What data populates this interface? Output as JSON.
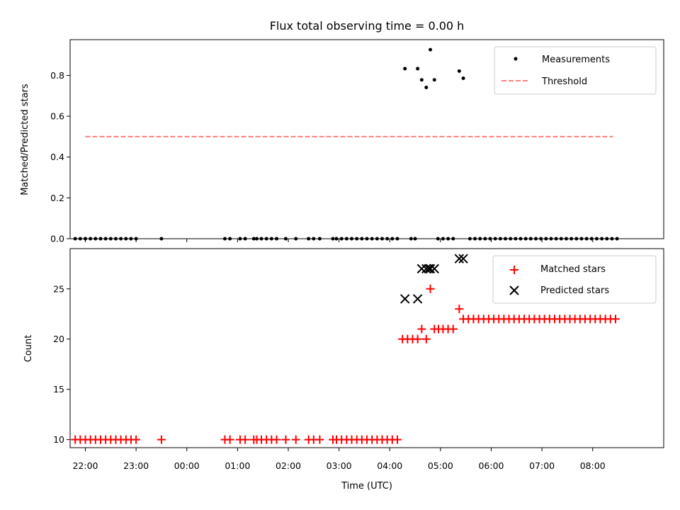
{
  "chart_data": [
    {
      "type": "scatter",
      "title": "Flux total observing time = 0.00 h",
      "ylabel": "Matched/Predicted stars",
      "xlim": [
        -2.3,
        9.4
      ],
      "ylim": [
        0,
        0.975
      ],
      "yticks": [
        "0.0",
        "0.2",
        "0.4",
        "0.6",
        "0.8"
      ],
      "x_unit": "hours relative to 00:00 UTC",
      "legend": {
        "position": "top-right",
        "entries": [
          "Measurements",
          "Threshold"
        ]
      },
      "threshold": {
        "name": "Threshold",
        "value": 0.5,
        "x": [
          -2.0,
          8.4
        ],
        "color": "#ff7f7f",
        "style": "dashed"
      },
      "series": [
        {
          "name": "Measurements",
          "color": "#000000",
          "marker": "dot",
          "points": [
            [
              -2.2,
              0
            ],
            [
              -2.1,
              0
            ],
            [
              -2.0,
              0
            ],
            [
              -1.9,
              0
            ],
            [
              -1.8,
              0
            ],
            [
              -1.7,
              0
            ],
            [
              -1.6,
              0
            ],
            [
              -1.5,
              0
            ],
            [
              -1.4,
              0
            ],
            [
              -1.3,
              0
            ],
            [
              -1.2,
              0
            ],
            [
              -1.1,
              0
            ],
            [
              -1.0,
              0
            ],
            [
              -0.5,
              0
            ],
            [
              0.75,
              0
            ],
            [
              0.85,
              0
            ],
            [
              1.05,
              0
            ],
            [
              1.15,
              0
            ],
            [
              1.32,
              0
            ],
            [
              1.38,
              0
            ],
            [
              1.47,
              0
            ],
            [
              1.57,
              0
            ],
            [
              1.67,
              0
            ],
            [
              1.77,
              0
            ],
            [
              1.95,
              0
            ],
            [
              2.15,
              0
            ],
            [
              2.4,
              0
            ],
            [
              2.5,
              0
            ],
            [
              2.62,
              0
            ],
            [
              2.88,
              0
            ],
            [
              2.95,
              0
            ],
            [
              3.05,
              0
            ],
            [
              3.15,
              0
            ],
            [
              3.25,
              0
            ],
            [
              3.35,
              0
            ],
            [
              3.45,
              0
            ],
            [
              3.55,
              0
            ],
            [
              3.65,
              0
            ],
            [
              3.75,
              0
            ],
            [
              3.85,
              0
            ],
            [
              3.95,
              0
            ],
            [
              4.05,
              0
            ],
            [
              4.15,
              0
            ],
            [
              4.42,
              0
            ],
            [
              4.5,
              0
            ],
            [
              4.95,
              0
            ],
            [
              5.05,
              0
            ],
            [
              5.15,
              0
            ],
            [
              5.25,
              0
            ],
            [
              5.58,
              0
            ],
            [
              5.68,
              0
            ],
            [
              5.78,
              0
            ],
            [
              5.88,
              0
            ],
            [
              5.98,
              0
            ],
            [
              6.08,
              0
            ],
            [
              6.18,
              0
            ],
            [
              6.28,
              0
            ],
            [
              6.38,
              0
            ],
            [
              6.48,
              0
            ],
            [
              6.58,
              0
            ],
            [
              6.68,
              0
            ],
            [
              6.78,
              0
            ],
            [
              6.88,
              0
            ],
            [
              6.98,
              0
            ],
            [
              7.08,
              0
            ],
            [
              7.18,
              0
            ],
            [
              7.28,
              0
            ],
            [
              7.38,
              0
            ],
            [
              7.48,
              0
            ],
            [
              7.58,
              0
            ],
            [
              7.68,
              0
            ],
            [
              7.78,
              0
            ],
            [
              7.88,
              0
            ],
            [
              7.98,
              0
            ],
            [
              8.08,
              0
            ],
            [
              8.18,
              0
            ],
            [
              8.28,
              0
            ],
            [
              8.38,
              0
            ],
            [
              8.48,
              0
            ],
            [
              4.3,
              0.833
            ],
            [
              4.55,
              0.833
            ],
            [
              4.63,
              0.778
            ],
            [
              4.72,
              0.741
            ],
            [
              4.8,
              0.926
            ],
            [
              4.88,
              0.778
            ],
            [
              5.37,
              0.821
            ],
            [
              5.45,
              0.786
            ]
          ]
        }
      ]
    },
    {
      "type": "scatter",
      "xlabel": "Time (UTC)",
      "ylabel": "Count",
      "xlim": [
        -2.3,
        9.4
      ],
      "ylim": [
        9.2,
        29
      ],
      "yticks": [
        "10",
        "15",
        "20",
        "25"
      ],
      "xtick_labels": [
        "22:00",
        "23:00",
        "00:00",
        "01:00",
        "02:00",
        "03:00",
        "04:00",
        "05:00",
        "06:00",
        "07:00",
        "08:00"
      ],
      "xtick_hours": [
        -2,
        -1,
        0,
        1,
        2,
        3,
        4,
        5,
        6,
        7,
        8
      ],
      "x_unit": "hours relative to 00:00 UTC",
      "legend": {
        "position": "top-right",
        "entries": [
          "Matched stars",
          "Predicted stars"
        ]
      },
      "series": [
        {
          "name": "Matched stars",
          "color": "#ff0000",
          "marker": "plus",
          "points": [
            [
              -2.2,
              10
            ],
            [
              -2.1,
              10
            ],
            [
              -2.0,
              10
            ],
            [
              -1.9,
              10
            ],
            [
              -1.8,
              10
            ],
            [
              -1.7,
              10
            ],
            [
              -1.6,
              10
            ],
            [
              -1.5,
              10
            ],
            [
              -1.4,
              10
            ],
            [
              -1.3,
              10
            ],
            [
              -1.2,
              10
            ],
            [
              -1.1,
              10
            ],
            [
              -1.0,
              10
            ],
            [
              -0.5,
              10
            ],
            [
              0.75,
              10
            ],
            [
              0.85,
              10
            ],
            [
              1.05,
              10
            ],
            [
              1.15,
              10
            ],
            [
              1.32,
              10
            ],
            [
              1.38,
              10
            ],
            [
              1.47,
              10
            ],
            [
              1.57,
              10
            ],
            [
              1.67,
              10
            ],
            [
              1.77,
              10
            ],
            [
              1.95,
              10
            ],
            [
              2.15,
              10
            ],
            [
              2.4,
              10
            ],
            [
              2.5,
              10
            ],
            [
              2.62,
              10
            ],
            [
              2.88,
              10
            ],
            [
              2.95,
              10
            ],
            [
              3.05,
              10
            ],
            [
              3.15,
              10
            ],
            [
              3.25,
              10
            ],
            [
              3.35,
              10
            ],
            [
              3.45,
              10
            ],
            [
              3.55,
              10
            ],
            [
              3.65,
              10
            ],
            [
              3.75,
              10
            ],
            [
              3.85,
              10
            ],
            [
              3.95,
              10
            ],
            [
              4.05,
              10
            ],
            [
              4.15,
              10
            ],
            [
              4.25,
              20
            ],
            [
              4.35,
              20
            ],
            [
              4.45,
              20
            ],
            [
              4.55,
              20
            ],
            [
              4.63,
              21
            ],
            [
              4.72,
              20
            ],
            [
              4.8,
              25
            ],
            [
              4.88,
              21
            ],
            [
              4.96,
              21
            ],
            [
              5.05,
              21
            ],
            [
              5.15,
              21
            ],
            [
              5.25,
              21
            ],
            [
              5.37,
              23
            ],
            [
              5.45,
              22
            ],
            [
              5.55,
              22
            ],
            [
              5.65,
              22
            ],
            [
              5.75,
              22
            ],
            [
              5.85,
              22
            ],
            [
              5.95,
              22
            ],
            [
              6.05,
              22
            ],
            [
              6.15,
              22
            ],
            [
              6.25,
              22
            ],
            [
              6.35,
              22
            ],
            [
              6.45,
              22
            ],
            [
              6.55,
              22
            ],
            [
              6.65,
              22
            ],
            [
              6.75,
              22
            ],
            [
              6.85,
              22
            ],
            [
              6.95,
              22
            ],
            [
              7.05,
              22
            ],
            [
              7.15,
              22
            ],
            [
              7.25,
              22
            ],
            [
              7.35,
              22
            ],
            [
              7.45,
              22
            ],
            [
              7.55,
              22
            ],
            [
              7.65,
              22
            ],
            [
              7.75,
              22
            ],
            [
              7.85,
              22
            ],
            [
              7.95,
              22
            ],
            [
              8.05,
              22
            ],
            [
              8.15,
              22
            ],
            [
              8.25,
              22
            ],
            [
              8.35,
              22
            ],
            [
              8.45,
              22
            ]
          ]
        },
        {
          "name": "Predicted stars",
          "color": "#000000",
          "marker": "x",
          "points": [
            [
              4.3,
              24
            ],
            [
              4.55,
              24
            ],
            [
              4.63,
              27
            ],
            [
              4.72,
              27
            ],
            [
              4.77,
              27
            ],
            [
              4.8,
              27
            ],
            [
              4.88,
              27
            ],
            [
              5.37,
              28
            ],
            [
              5.45,
              28
            ]
          ]
        }
      ]
    }
  ]
}
